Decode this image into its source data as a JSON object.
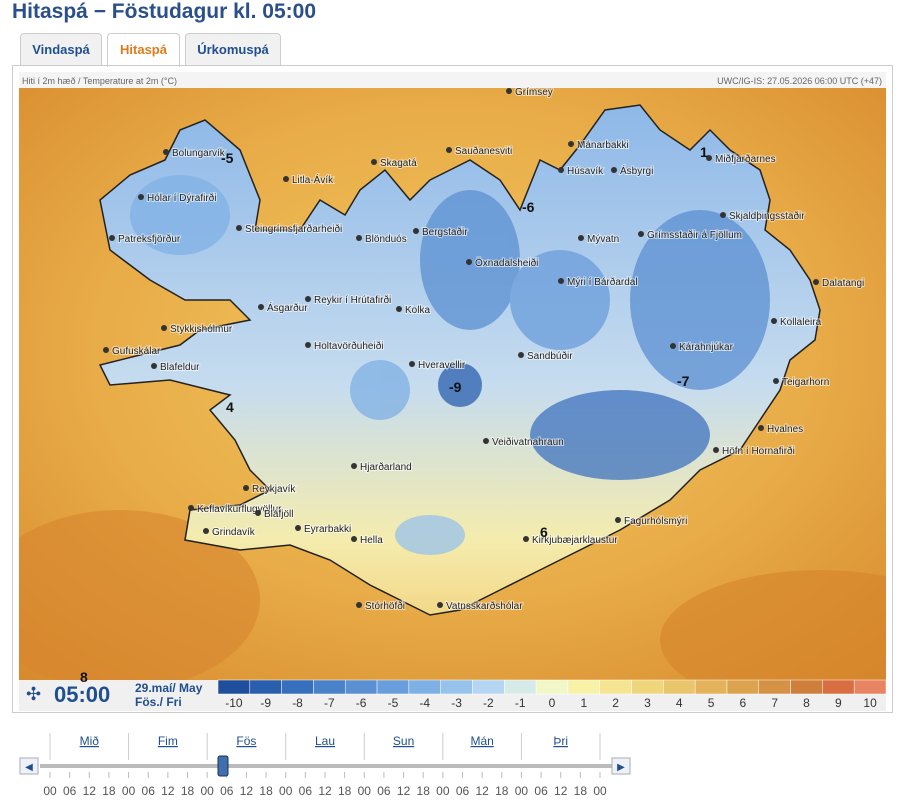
{
  "header": {
    "title": "Hitaspá − Föstudagur kl. 05:00"
  },
  "tabs": [
    {
      "label": "Vindaspá",
      "active": false
    },
    {
      "label": "Hitaspá",
      "active": true
    },
    {
      "label": "Úrkomuspá",
      "active": false
    }
  ],
  "map": {
    "caption_left": "Hiti í 2m hæð / Temperature at 2m (°C)",
    "caption_right": "UWC/IG-IS: 27.05.2026 06:00 UTC (+47)",
    "places": [
      "Grímsey",
      "Mánarbakki",
      "Miðfjarðarnes",
      "Bolungarvík",
      "Sauðanesviti",
      "Skagatá",
      "Húsavík",
      "Ásbyrgi",
      "Litla-Ávík",
      "Hólar í Dýrafirði",
      "Bergstaðir",
      "Mývatn",
      "Grímsstaðir á Fjöllum",
      "Skjaldþingsstaðir",
      "Patreksfjörður",
      "Steingrímsfjarðarheiði",
      "Blönduós",
      "Öxnadalsheiði",
      "Dalatangi",
      "Mýri í Bárðardal",
      "Reykir í Hrútafirði",
      "Ásgarður",
      "Kolka",
      "Kollaleira",
      "Stykkishólmur",
      "Holtavörðuheiði",
      "Kárahnjúkar",
      "Gufuskálar",
      "Hveravellir",
      "Sandbúðir",
      "Blafeldur",
      "Teigarhorn",
      "Hvalnes",
      "Veiðivatnahraun",
      "Höfn í Hornafirði",
      "Hjarðarland",
      "Reykjavík",
      "Keflavíkurflugvöllur",
      "Bláfjöll",
      "Eyrarbakki",
      "Grindavík",
      "Hella",
      "Kirkjubæjarklaustur",
      "Fagurhólsmýri",
      "Stórhöfði",
      "Vatnsskarðshólar"
    ],
    "temperature_labels": [
      -5,
      1,
      -6,
      -9,
      -7,
      4,
      6,
      8
    ]
  },
  "time_bar": {
    "time": "05:00",
    "date": "29.maí/ May",
    "day": "Fös./ Fri"
  },
  "legend": {
    "items": [
      {
        "value": -10,
        "color": "#1f4f9c"
      },
      {
        "value": -9,
        "color": "#2a5fae"
      },
      {
        "value": -8,
        "color": "#3670bd"
      },
      {
        "value": -7,
        "color": "#4a82c9"
      },
      {
        "value": -6,
        "color": "#5b90d2"
      },
      {
        "value": -5,
        "color": "#6a9ddb"
      },
      {
        "value": -4,
        "color": "#7fb0e4"
      },
      {
        "value": -3,
        "color": "#97c2ec"
      },
      {
        "value": -2,
        "color": "#b5d6f3"
      },
      {
        "value": -1,
        "color": "#d6ebe8"
      },
      {
        "value": 0,
        "color": "#f2f7c8"
      },
      {
        "value": 1,
        "color": "#f8f2a8"
      },
      {
        "value": 2,
        "color": "#f5e590"
      },
      {
        "value": 3,
        "color": "#efd57c"
      },
      {
        "value": 4,
        "color": "#e9c66b"
      },
      {
        "value": 5,
        "color": "#e2b35a"
      },
      {
        "value": 6,
        "color": "#dca34f"
      },
      {
        "value": 7,
        "color": "#d59145"
      },
      {
        "value": 8,
        "color": "#ce7f3c"
      },
      {
        "value": 9,
        "color": "#d86e42"
      },
      {
        "value": 10,
        "color": "#e98463"
      }
    ]
  },
  "timeline": {
    "days": [
      "Mið",
      "Fim",
      "Fös",
      "Lau",
      "Sun",
      "Mán",
      "Þri"
    ],
    "hours": [
      "00",
      "06",
      "12",
      "18",
      "00",
      "06",
      "12",
      "18",
      "00",
      "06",
      "12",
      "18",
      "00",
      "06",
      "12",
      "18",
      "00",
      "06",
      "12",
      "18",
      "00",
      "06",
      "12",
      "18",
      "00",
      "06",
      "12",
      "18",
      "00"
    ]
  }
}
